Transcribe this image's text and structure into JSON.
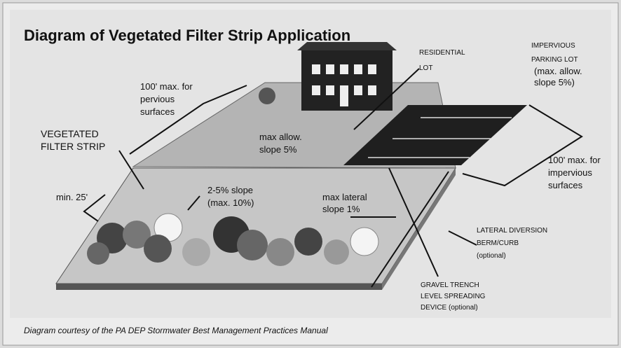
{
  "title": "Diagram of Vegetated Filter Strip Application",
  "labels": {
    "residential_lot": [
      "RESIDENTIAL",
      "LOT"
    ],
    "parking_lot": [
      "IMPERVIOUS",
      "PARKING LOT",
      "(max. allow.",
      "slope 5%)"
    ],
    "pervious": [
      "100' max. for",
      "pervious",
      "surfaces"
    ],
    "filter_strip": [
      "VEGETATED",
      "FILTER STRIP"
    ],
    "lawn_slope": [
      "max allow.",
      "slope 5%"
    ],
    "impervious": [
      "100' max. for",
      "impervious",
      "surfaces"
    ],
    "min_width": [
      "min. 25'"
    ],
    "strip_slope": [
      "2-5% slope",
      "(max. 10%)"
    ],
    "lateral_slope": [
      "max lateral",
      "slope 1%"
    ],
    "berm": [
      "LATERAL DIVERSION",
      "BERM/CURB",
      "(optional)"
    ],
    "trench": [
      "GRAVEL TRENCH",
      "LEVEL SPREADING",
      "DEVICE (optional)"
    ]
  },
  "caption": "Diagram courtesy of the PA DEP Stormwater Best Management Practices Manual"
}
